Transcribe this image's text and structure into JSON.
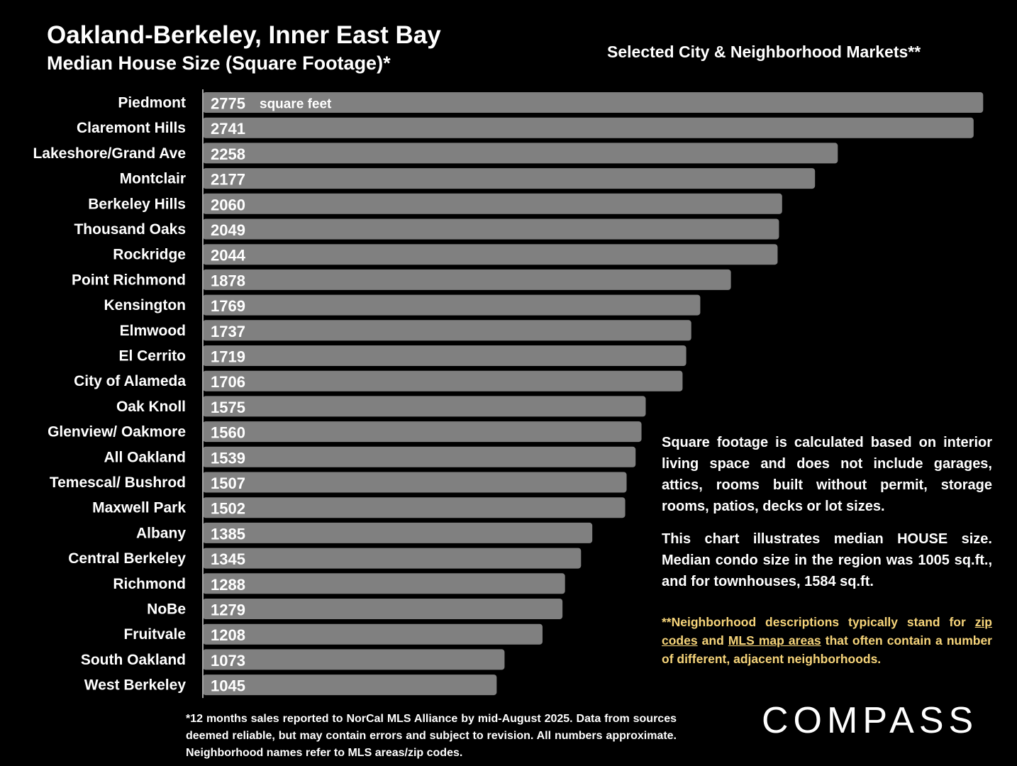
{
  "header": {
    "title": "Oakland-Berkeley, Inner East Bay",
    "subtitle": "Median House Size (Square Footage)*",
    "section_title": "Selected City & Neighborhood Markets**"
  },
  "chart_data": {
    "type": "bar",
    "orientation": "horizontal",
    "categories": [
      "Piedmont",
      "Claremont Hills",
      "Lakeshore/Grand Ave",
      "Montclair",
      "Berkeley Hills",
      "Thousand Oaks",
      "Rockridge",
      "Point Richmond",
      "Kensington",
      "Elmwood",
      "El Cerrito",
      "City of Alameda",
      "Oak Knoll",
      "Glenview/ Oakmore",
      "All Oakland",
      "Temescal/ Bushrod",
      "Maxwell Park",
      "Albany",
      "Central Berkeley",
      "Richmond",
      "NoBe",
      "Fruitvale",
      "South Oakland",
      "West Berkeley"
    ],
    "values": [
      2775,
      2741,
      2258,
      2177,
      2060,
      2049,
      2044,
      1878,
      1769,
      1737,
      1719,
      1706,
      1575,
      1560,
      1539,
      1507,
      1502,
      1385,
      1345,
      1288,
      1279,
      1208,
      1073,
      1045
    ],
    "first_bar_unit_label": "square feet",
    "bar_color": "#808080",
    "axis_color": "#a6a6a6"
  },
  "notes": {
    "p1": "Square footage is calculated based on interior living space and does not include garages, attics, rooms built without permit, storage rooms, patios, decks or lot sizes.",
    "p2": "This chart illustrates median HOUSE size. Median condo size in the region was 1005 sq.ft., and for townhouses, 1584 sq.ft.",
    "p3_a": "**Neighborhood descriptions typically stand for",
    "p3_link1": "zip codes",
    "p3_b": "and",
    "p3_link2": "MLS map areas",
    "p3_c": "that often contain a number of different, adjacent neighborhoods.",
    "highlight_color": "#f6d47a"
  },
  "footnote": "*12 months sales reported to NorCal MLS Alliance by mid-August 2025. Data from sources deemed reliable, but may contain errors and subject to revision. All numbers approximate. Neighborhood names refer to MLS areas/zip codes.",
  "logo": {
    "text": "COMPASS"
  }
}
